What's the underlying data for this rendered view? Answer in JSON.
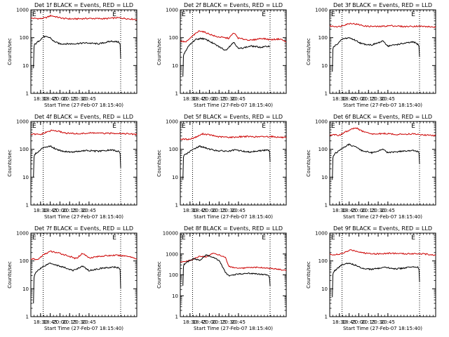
{
  "figure": {
    "marker_left": "E",
    "marker_right": "E"
  },
  "chart_data": [
    {
      "type": "line",
      "title": "Det 1f BLACK = Events, RED = LLD",
      "xlabel": "Start Time (27-Feb-07 18:15:40)",
      "ylabel": "Counts/sec",
      "yscale": "log",
      "ylim": [
        1,
        1000
      ],
      "ytick_labels": [
        "1",
        "10",
        "100",
        "1000"
      ],
      "xlim": [
        "18:15",
        "20:59"
      ],
      "xtick_labels": [
        "18:30",
        "18:45",
        "20:00",
        "20:15",
        "20:30",
        "20:45"
      ],
      "event_lines": [
        "18:34",
        "20:34"
      ],
      "grid": false,
      "series": [
        {
          "color": "#cc0000",
          "x": [
            "18:15",
            "18:30",
            "18:38",
            "18:46",
            "18:54",
            "19:05",
            "19:20",
            "19:45",
            "20:10",
            "20:30",
            "20:45",
            "20:59"
          ],
          "values": [
            500,
            480,
            520,
            620,
            560,
            490,
            470,
            490,
            480,
            520,
            480,
            450
          ]
        },
        {
          "color": "#000000",
          "x": [
            "18:19",
            "18:20",
            "18:24",
            "18:35",
            "18:45",
            "18:50",
            "19:00",
            "19:20",
            "19:40",
            "20:00",
            "20:20",
            "20:30",
            "20:33",
            "20:34"
          ],
          "values": [
            8,
            55,
            65,
            110,
            100,
            75,
            60,
            60,
            65,
            60,
            75,
            70,
            65,
            18
          ]
        }
      ]
    },
    {
      "type": "line",
      "title": "Det 2f BLACK = Events, RED = LLD",
      "xlabel": "Start Time (27-Feb-07 18:15:40)",
      "ylabel": "Counts/sec",
      "yscale": "log",
      "ylim": [
        1,
        1000
      ],
      "ytick_labels": [
        "1",
        "10",
        "100",
        "1000"
      ],
      "xlim": [
        "18:15",
        "20:59"
      ],
      "xtick_labels": [
        "18:30",
        "18:45",
        "20:00",
        "20:15",
        "20:30",
        "20:45"
      ],
      "event_lines": [
        "18:34",
        "20:34"
      ],
      "grid": false,
      "series": [
        {
          "color": "#cc0000",
          "x": [
            "18:15",
            "18:24",
            "18:35",
            "18:45",
            "18:55",
            "19:10",
            "19:30",
            "19:38",
            "19:45",
            "20:05",
            "20:20",
            "20:35",
            "20:50",
            "20:59"
          ],
          "values": [
            75,
            70,
            120,
            180,
            150,
            110,
            95,
            150,
            95,
            80,
            95,
            85,
            90,
            70
          ]
        },
        {
          "color": "#000000",
          "x": [
            "18:19",
            "18:20",
            "18:28",
            "18:38",
            "18:48",
            "18:58",
            "19:10",
            "19:25",
            "19:38",
            "19:45",
            "20:05",
            "20:20",
            "20:33",
            "20:34"
          ],
          "values": [
            4,
            25,
            50,
            85,
            95,
            80,
            55,
            35,
            70,
            40,
            50,
            45,
            50,
            50
          ]
        }
      ]
    },
    {
      "type": "line",
      "title": "Det 3f BLACK = Events, RED = LLD",
      "xlabel": "Start Time (27-Feb-07 18:15:40)",
      "ylabel": "Counts/sec",
      "yscale": "log",
      "ylim": [
        1,
        1000
      ],
      "ytick_labels": [
        "1",
        "10",
        "100",
        "1000"
      ],
      "xlim": [
        "18:15",
        "20:59"
      ],
      "xtick_labels": [
        "18:30",
        "18:45",
        "20:00",
        "20:15",
        "20:30",
        "20:45"
      ],
      "event_lines": [
        "18:34",
        "20:34"
      ],
      "grid": false,
      "series": [
        {
          "color": "#cc0000",
          "x": [
            "18:15",
            "18:30",
            "18:40",
            "18:48",
            "18:58",
            "19:10",
            "19:30",
            "19:50",
            "20:10",
            "20:30",
            "20:45",
            "20:59"
          ],
          "values": [
            260,
            250,
            300,
            330,
            300,
            260,
            250,
            270,
            250,
            260,
            250,
            240
          ]
        },
        {
          "color": "#000000",
          "x": [
            "18:19",
            "18:20",
            "18:25",
            "18:35",
            "18:45",
            "18:55",
            "19:05",
            "19:20",
            "19:38",
            "19:45",
            "20:05",
            "20:25",
            "20:33",
            "20:34"
          ],
          "values": [
            6,
            45,
            55,
            90,
            100,
            80,
            60,
            55,
            75,
            50,
            60,
            70,
            55,
            20
          ]
        }
      ]
    },
    {
      "type": "line",
      "title": "Det 4f BLACK = Events, RED = LLD",
      "xlabel": "Start Time (27-Feb-07 18:15:40)",
      "ylabel": "Counts/sec",
      "yscale": "log",
      "ylim": [
        1,
        1000
      ],
      "ytick_labels": [
        "1",
        "10",
        "100",
        "1000"
      ],
      "xlim": [
        "18:15",
        "20:59"
      ],
      "xtick_labels": [
        "18:30",
        "18:45",
        "20:00",
        "20:15",
        "20:30",
        "20:45"
      ],
      "event_lines": [
        "18:34",
        "20:34"
      ],
      "grid": false,
      "series": [
        {
          "color": "#cc0000",
          "x": [
            "18:15",
            "18:30",
            "18:40",
            "18:48",
            "18:58",
            "19:10",
            "19:30",
            "19:50",
            "20:10",
            "20:30",
            "20:45",
            "20:59"
          ],
          "values": [
            350,
            340,
            420,
            480,
            440,
            380,
            360,
            390,
            370,
            380,
            360,
            340
          ]
        },
        {
          "color": "#000000",
          "x": [
            "18:19",
            "18:20",
            "18:25",
            "18:35",
            "18:45",
            "18:55",
            "19:05",
            "19:20",
            "19:40",
            "20:00",
            "20:20",
            "20:30",
            "20:33",
            "20:34"
          ],
          "values": [
            10,
            65,
            75,
            120,
            130,
            100,
            85,
            80,
            90,
            85,
            95,
            85,
            80,
            22
          ]
        }
      ]
    },
    {
      "type": "line",
      "title": "Det 5f BLACK = Events, RED = LLD",
      "xlabel": "Start Time (27-Feb-07 18:15:40)",
      "ylabel": "Counts/sec",
      "yscale": "log",
      "ylim": [
        1,
        1000
      ],
      "ytick_labels": [
        "1",
        "10",
        "100",
        "1000"
      ],
      "xlim": [
        "18:15",
        "20:59"
      ],
      "xtick_labels": [
        "18:30",
        "18:45",
        "20:00",
        "20:15",
        "20:30",
        "20:45"
      ],
      "event_lines": [
        "18:34",
        "20:34"
      ],
      "grid": false,
      "series": [
        {
          "color": "#cc0000",
          "x": [
            "18:15",
            "18:30",
            "18:40",
            "18:50",
            "19:00",
            "19:15",
            "19:35",
            "19:55",
            "20:15",
            "20:35",
            "20:50",
            "20:59"
          ],
          "values": [
            230,
            230,
            280,
            360,
            330,
            280,
            270,
            290,
            280,
            290,
            270,
            260
          ]
        },
        {
          "color": "#000000",
          "x": [
            "18:19",
            "18:20",
            "18:25",
            "18:35",
            "18:45",
            "18:55",
            "19:10",
            "19:30",
            "19:40",
            "20:00",
            "20:20",
            "20:33",
            "20:34"
          ],
          "values": [
            8,
            60,
            70,
            100,
            130,
            110,
            90,
            85,
            95,
            80,
            90,
            95,
            35
          ]
        }
      ]
    },
    {
      "type": "line",
      "title": "Det 6f BLACK = Events, RED = LLD",
      "xlabel": "Start Time (27-Feb-07 18:15:40)",
      "ylabel": "Counts/sec",
      "yscale": "log",
      "ylim": [
        1,
        1000
      ],
      "ytick_labels": [
        "1",
        "10",
        "100",
        "1000"
      ],
      "xlim": [
        "18:15",
        "20:59"
      ],
      "xtick_labels": [
        "18:30",
        "18:45",
        "20:00",
        "20:15",
        "20:30",
        "20:45"
      ],
      "event_lines": [
        "18:34",
        "20:34"
      ],
      "grid": false,
      "series": [
        {
          "color": "#cc0000",
          "x": [
            "18:15",
            "18:30",
            "18:40",
            "18:48",
            "18:55",
            "19:05",
            "19:20",
            "19:40",
            "20:00",
            "20:20",
            "20:40",
            "20:59"
          ],
          "values": [
            330,
            320,
            430,
            520,
            600,
            450,
            350,
            370,
            340,
            360,
            330,
            310
          ]
        },
        {
          "color": "#000000",
          "x": [
            "18:19",
            "18:20",
            "18:25",
            "18:35",
            "18:45",
            "18:55",
            "19:05",
            "19:20",
            "19:38",
            "19:45",
            "20:05",
            "20:25",
            "20:33",
            "20:34"
          ],
          "values": [
            8,
            60,
            75,
            110,
            150,
            120,
            90,
            75,
            100,
            75,
            85,
            90,
            80,
            30
          ]
        }
      ]
    },
    {
      "type": "line",
      "title": "Det 7f BLACK = Events, RED = LLD",
      "xlabel": "Start Time (27-Feb-07 18:15:40)",
      "ylabel": "Counts/sec",
      "yscale": "log",
      "ylim": [
        1,
        1000
      ],
      "ytick_labels": [
        "1",
        "10",
        "100",
        "1000"
      ],
      "xlim": [
        "18:15",
        "20:59"
      ],
      "xtick_labels": [
        "18:30",
        "18:45",
        "20:00",
        "20:15",
        "20:30",
        "20:45"
      ],
      "event_lines": [
        "18:34",
        "20:34"
      ],
      "grid": false,
      "series": [
        {
          "color": "#cc0000",
          "x": [
            "18:15",
            "18:25",
            "18:35",
            "18:45",
            "18:55",
            "19:10",
            "19:25",
            "19:35",
            "19:45",
            "20:05",
            "20:25",
            "20:45",
            "20:59"
          ],
          "values": [
            120,
            110,
            170,
            220,
            200,
            160,
            120,
            190,
            130,
            150,
            160,
            150,
            120
          ]
        },
        {
          "color": "#000000",
          "x": [
            "18:19",
            "18:20",
            "18:25",
            "18:35",
            "18:45",
            "18:55",
            "19:10",
            "19:20",
            "19:35",
            "19:45",
            "20:05",
            "20:25",
            "20:33",
            "20:34"
          ],
          "values": [
            3,
            30,
            45,
            65,
            85,
            70,
            55,
            45,
            65,
            45,
            55,
            60,
            55,
            10
          ]
        }
      ]
    },
    {
      "type": "line",
      "title": "Det 8f BLACK = Events, RED = LLD",
      "xlabel": "Start Time (27-Feb-07 18:15:40)",
      "ylabel": "Counts/sec",
      "yscale": "log",
      "ylim": [
        1,
        10000
      ],
      "ytick_labels": [
        "1",
        "10",
        "100",
        "1000",
        "10000"
      ],
      "xlim": [
        "18:15",
        "20:59"
      ],
      "xtick_labels": [
        "18:30",
        "18:45",
        "20:00",
        "20:15",
        "20:30",
        "20:45"
      ],
      "event_lines": [
        "18:34",
        "20:34"
      ],
      "grid": false,
      "series": [
        {
          "color": "#cc0000",
          "x": [
            "18:15",
            "18:25",
            "18:35",
            "18:45",
            "18:55",
            "19:05",
            "19:15",
            "19:25",
            "19:30",
            "19:45",
            "20:00",
            "20:15",
            "20:30",
            "20:45",
            "20:59"
          ],
          "values": [
            420,
            450,
            550,
            800,
            700,
            1100,
            900,
            700,
            250,
            200,
            220,
            230,
            210,
            190,
            160
          ]
        },
        {
          "color": "#000000",
          "x": [
            "18:19",
            "18:20",
            "18:25",
            "18:35",
            "18:45",
            "18:55",
            "19:05",
            "19:15",
            "19:25",
            "19:30",
            "19:45",
            "20:00",
            "20:15",
            "20:30",
            "20:33",
            "20:34"
          ],
          "values": [
            30,
            300,
            400,
            600,
            500,
            900,
            700,
            500,
            130,
            90,
            110,
            120,
            110,
            100,
            80,
            30
          ]
        }
      ]
    },
    {
      "type": "line",
      "title": "Det 9f BLACK = Events, RED = LLD",
      "xlabel": "Start Time (27-Feb-07 18:15:40)",
      "ylabel": "Counts/sec",
      "yscale": "log",
      "ylim": [
        1,
        1000
      ],
      "ytick_labels": [
        "1",
        "10",
        "100",
        "1000"
      ],
      "xlim": [
        "18:15",
        "20:59"
      ],
      "xtick_labels": [
        "18:30",
        "18:45",
        "20:00",
        "20:15",
        "20:30",
        "20:45"
      ],
      "event_lines": [
        "18:34",
        "20:34"
      ],
      "grid": false,
      "series": [
        {
          "color": "#cc0000",
          "x": [
            "18:15",
            "18:30",
            "18:40",
            "18:48",
            "18:58",
            "19:10",
            "19:30",
            "19:50",
            "20:10",
            "20:30",
            "20:45",
            "20:59"
          ],
          "values": [
            170,
            170,
            210,
            250,
            220,
            190,
            180,
            190,
            180,
            185,
            175,
            160
          ]
        },
        {
          "color": "#000000",
          "x": [
            "18:19",
            "18:20",
            "18:25",
            "18:35",
            "18:45",
            "18:55",
            "19:05",
            "19:20",
            "19:40",
            "20:00",
            "20:20",
            "20:30",
            "20:33",
            "20:34"
          ],
          "values": [
            5,
            40,
            50,
            75,
            85,
            70,
            55,
            50,
            58,
            52,
            60,
            62,
            55,
            18
          ]
        }
      ]
    }
  ]
}
